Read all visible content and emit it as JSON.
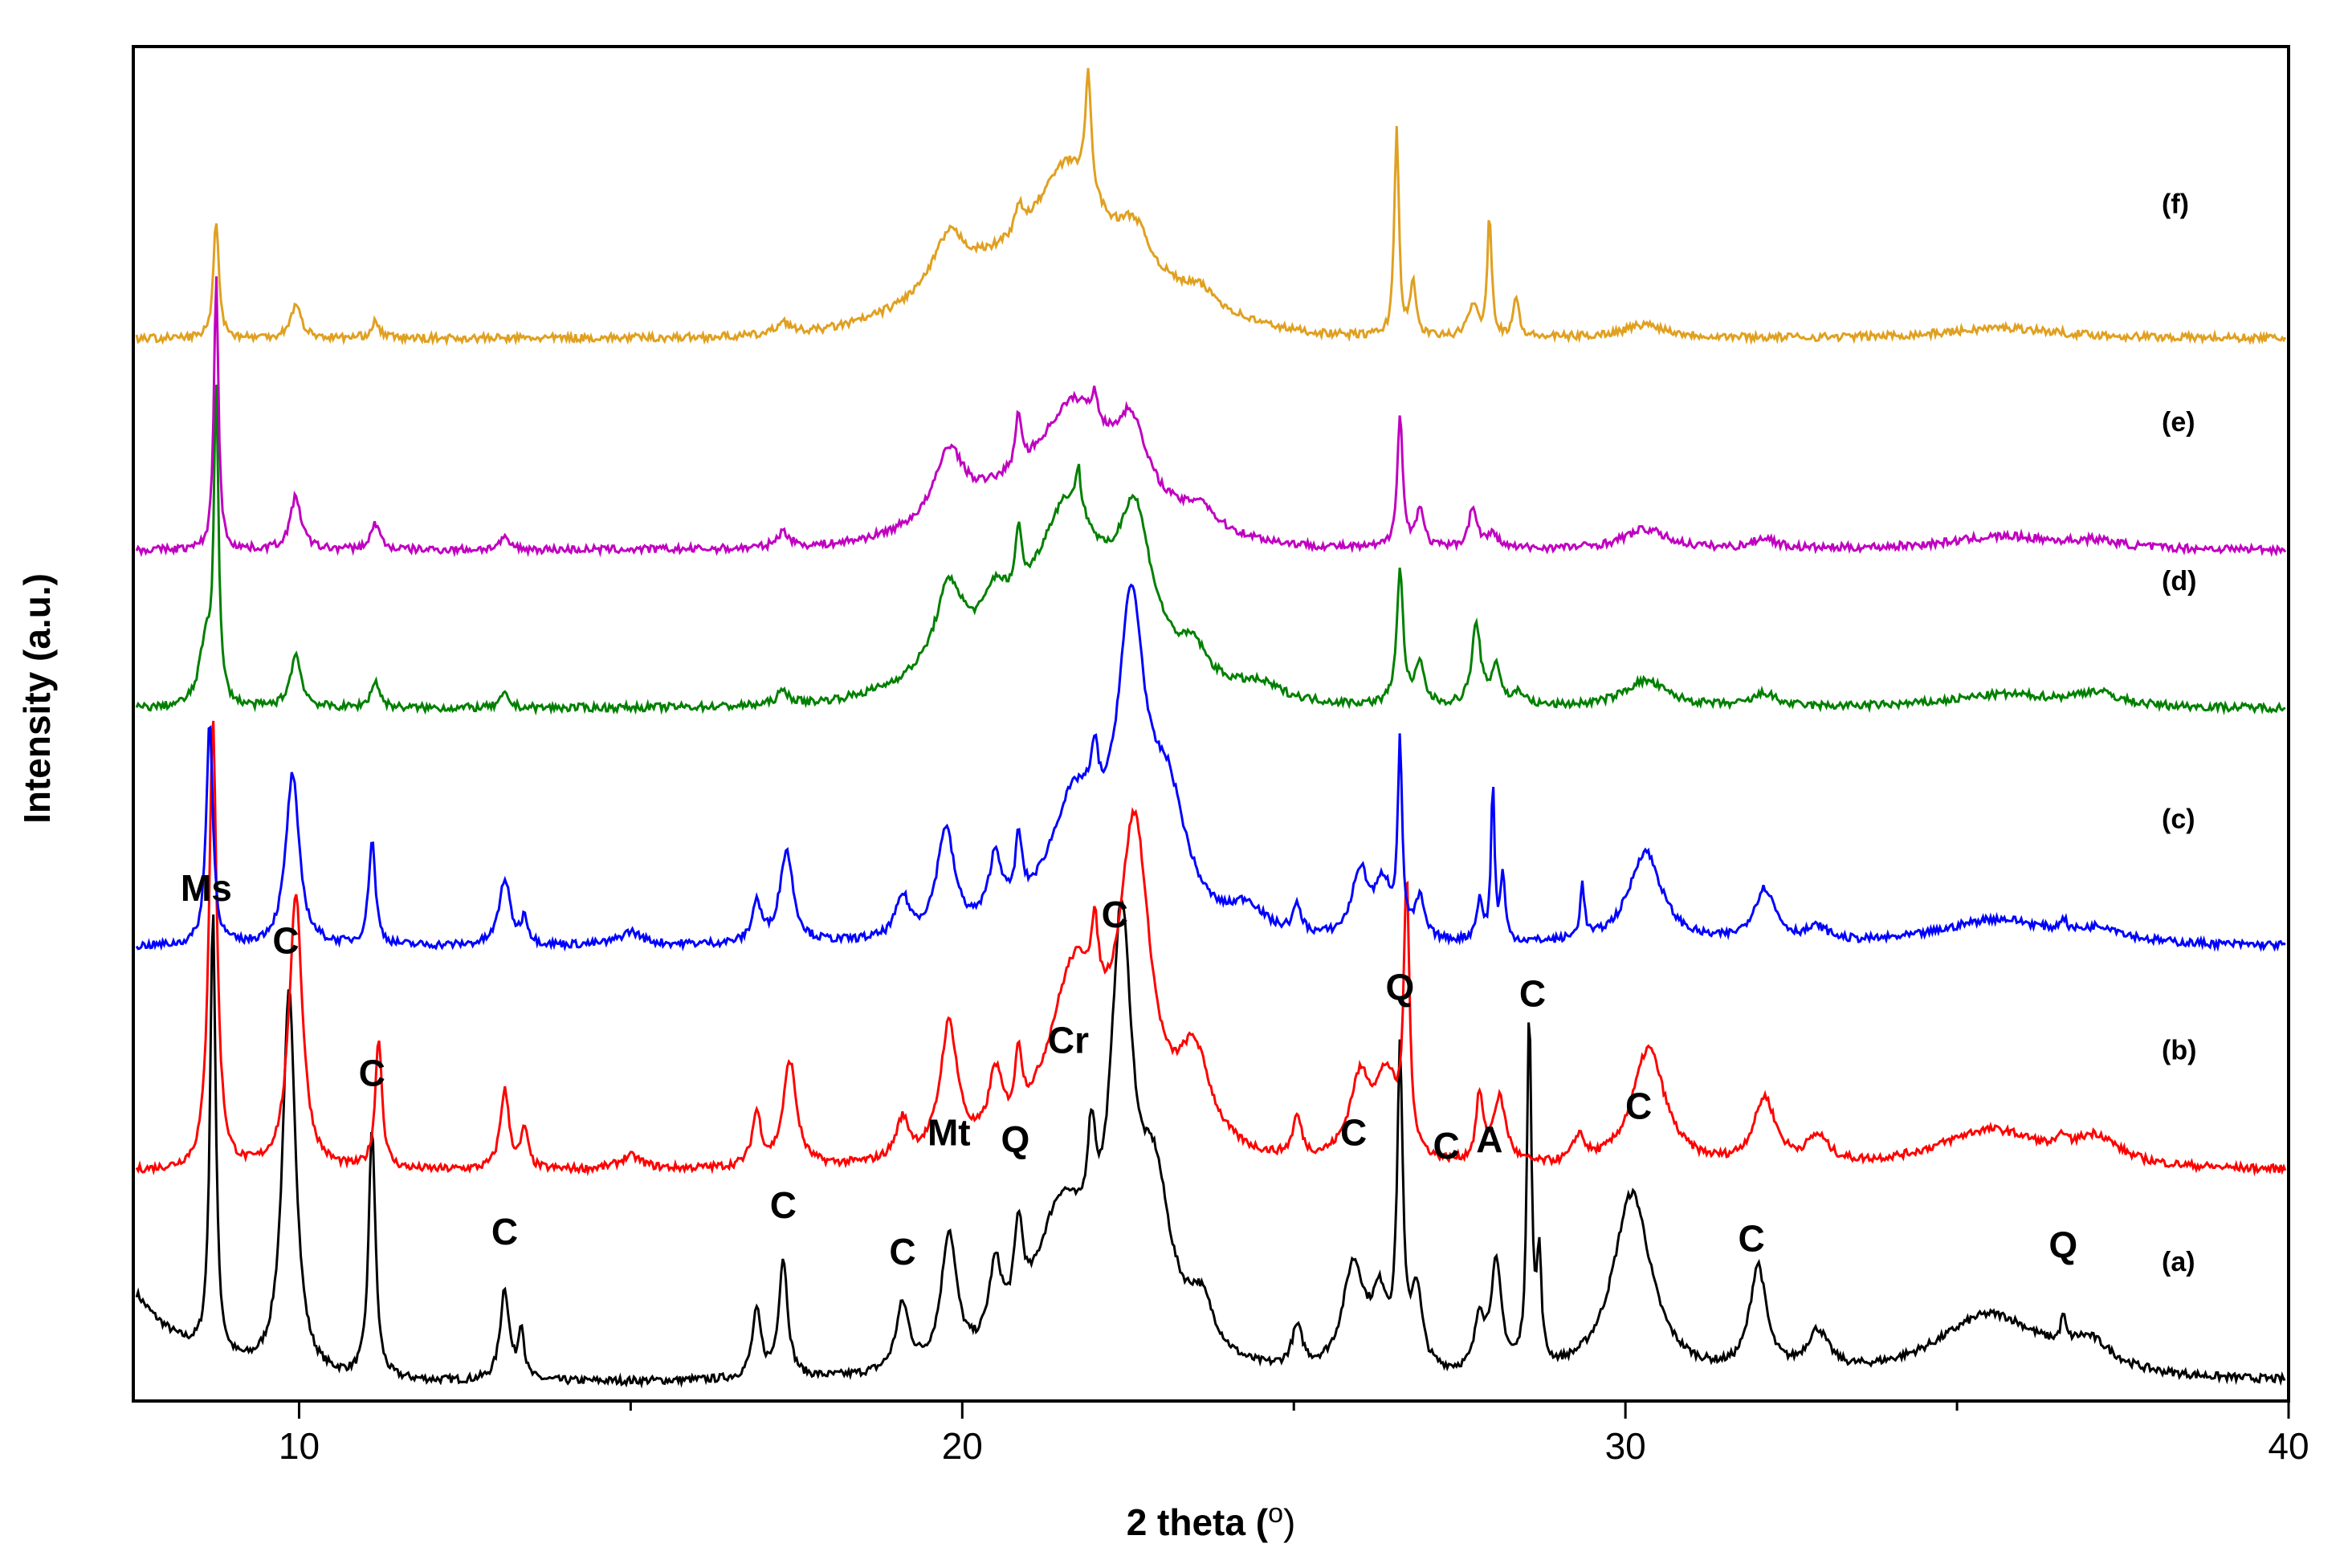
{
  "chart_data": {
    "type": "line",
    "title": "",
    "xlabel": "2 theta (",
    "xlabel_degree": "o",
    "xlabel_close": ")",
    "ylabel": "Intensity (a.u.)",
    "xlim": [
      7.5,
      40
    ],
    "ylim": [
      0,
      1
    ],
    "x_ticks": [
      10,
      20,
      30,
      40
    ],
    "x_tick_labels": [
      "10",
      "20",
      "30",
      "40"
    ],
    "grid": false,
    "legend": "right-inline",
    "series": [
      {
        "name": "(a)",
        "color": "#000000",
        "offset": 0.0,
        "baseline": 0.0,
        "peaks": [
          [
            8.7,
            0.34,
            0.05
          ],
          [
            9.85,
            0.29,
            0.12
          ],
          [
            11.1,
            0.19,
            0.06
          ],
          [
            13.1,
            0.07,
            0.08
          ],
          [
            13.35,
            0.04,
            0.05
          ],
          [
            16.9,
            0.05,
            0.08
          ],
          [
            17.3,
            0.09,
            0.08
          ],
          [
            19.1,
            0.05,
            0.12
          ],
          [
            19.8,
            0.1,
            0.14
          ],
          [
            20.5,
            0.06,
            0.12
          ],
          [
            20.85,
            0.07,
            0.08
          ],
          [
            21.5,
            0.12,
            0.5
          ],
          [
            21.95,
            0.08,
            0.08
          ],
          [
            22.4,
            0.3,
            0.2
          ],
          [
            22.9,
            0.12,
            0.3
          ],
          [
            23.6,
            0.04,
            0.25
          ],
          [
            25.05,
            0.03,
            0.1
          ],
          [
            25.9,
            0.08,
            0.2
          ],
          [
            26.3,
            0.05,
            0.15
          ],
          [
            26.6,
            0.23,
            0.05
          ],
          [
            26.85,
            0.06,
            0.1
          ],
          [
            27.8,
            0.04,
            0.08
          ],
          [
            28.05,
            0.08,
            0.1
          ],
          [
            28.55,
            0.27,
            0.04
          ],
          [
            28.7,
            0.08,
            0.04
          ],
          [
            30.1,
            0.14,
            0.35
          ],
          [
            32.0,
            0.08,
            0.15
          ],
          [
            32.9,
            0.03,
            0.2
          ],
          [
            35.5,
            0.05,
            1.0
          ],
          [
            36.6,
            0.02,
            0.04
          ],
          [
            37.0,
            0.02,
            0.4
          ]
        ],
        "start_hump": 0.07
      },
      {
        "name": "(b)",
        "color": "#ff0000",
        "offset": 0.16,
        "peaks": [
          [
            8.7,
            0.34,
            0.07
          ],
          [
            9.95,
            0.21,
            0.12
          ],
          [
            11.2,
            0.1,
            0.06
          ],
          [
            13.1,
            0.06,
            0.08
          ],
          [
            13.4,
            0.03,
            0.06
          ],
          [
            15.0,
            0.01,
            0.2
          ],
          [
            16.9,
            0.04,
            0.08
          ],
          [
            17.4,
            0.08,
            0.12
          ],
          [
            19.1,
            0.03,
            0.12
          ],
          [
            19.8,
            0.1,
            0.16
          ],
          [
            20.5,
            0.05,
            0.12
          ],
          [
            20.85,
            0.05,
            0.06
          ],
          [
            21.7,
            0.14,
            0.5
          ],
          [
            22.0,
            0.05,
            0.06
          ],
          [
            22.6,
            0.23,
            0.28
          ],
          [
            23.5,
            0.07,
            0.3
          ],
          [
            25.05,
            0.03,
            0.08
          ],
          [
            26.0,
            0.06,
            0.2
          ],
          [
            26.4,
            0.06,
            0.2
          ],
          [
            26.7,
            0.2,
            0.05
          ],
          [
            27.8,
            0.05,
            0.06
          ],
          [
            28.1,
            0.05,
            0.12
          ],
          [
            29.3,
            0.02,
            0.1
          ],
          [
            30.35,
            0.09,
            0.3
          ],
          [
            32.1,
            0.05,
            0.2
          ],
          [
            32.9,
            0.02,
            0.2
          ],
          [
            35.5,
            0.03,
            1.0
          ],
          [
            36.6,
            0.01,
            0.05
          ],
          [
            37.1,
            0.02,
            0.4
          ]
        ]
      },
      {
        "name": "(c)",
        "color": "#0000ff",
        "offset": 0.33,
        "peaks": [
          [
            8.65,
            0.17,
            0.06
          ],
          [
            9.9,
            0.13,
            0.12
          ],
          [
            11.1,
            0.08,
            0.06
          ],
          [
            13.1,
            0.05,
            0.1
          ],
          [
            13.4,
            0.02,
            0.06
          ],
          [
            15.0,
            0.01,
            0.2
          ],
          [
            16.9,
            0.03,
            0.08
          ],
          [
            17.35,
            0.07,
            0.12
          ],
          [
            19.1,
            0.03,
            0.12
          ],
          [
            19.75,
            0.08,
            0.16
          ],
          [
            20.5,
            0.05,
            0.12
          ],
          [
            20.85,
            0.05,
            0.06
          ],
          [
            21.7,
            0.1,
            0.5
          ],
          [
            22.0,
            0.04,
            0.06
          ],
          [
            22.55,
            0.22,
            0.25
          ],
          [
            23.1,
            0.09,
            0.35
          ],
          [
            24.3,
            0.02,
            0.3
          ],
          [
            25.05,
            0.02,
            0.08
          ],
          [
            26.0,
            0.05,
            0.15
          ],
          [
            26.35,
            0.04,
            0.15
          ],
          [
            26.6,
            0.14,
            0.04
          ],
          [
            26.9,
            0.03,
            0.08
          ],
          [
            27.8,
            0.03,
            0.06
          ],
          [
            28.0,
            0.12,
            0.03
          ],
          [
            28.15,
            0.05,
            0.04
          ],
          [
            29.35,
            0.04,
            0.04
          ],
          [
            30.3,
            0.07,
            0.3
          ],
          [
            32.1,
            0.04,
            0.2
          ],
          [
            32.9,
            0.01,
            0.2
          ],
          [
            35.6,
            0.02,
            1.0
          ],
          [
            36.6,
            0.01,
            0.05
          ],
          [
            37.2,
            0.01,
            0.4
          ]
        ]
      },
      {
        "name": "(d)",
        "color": "#008000",
        "offset": 0.51,
        "peaks": [
          [
            8.75,
            0.23,
            0.04
          ],
          [
            8.6,
            0.05,
            0.12
          ],
          [
            9.95,
            0.04,
            0.1
          ],
          [
            11.15,
            0.02,
            0.08
          ],
          [
            13.1,
            0.01,
            0.08
          ],
          [
            17.3,
            0.01,
            0.12
          ],
          [
            19.8,
            0.06,
            0.25
          ],
          [
            20.5,
            0.03,
            0.2
          ],
          [
            20.85,
            0.05,
            0.05
          ],
          [
            21.6,
            0.1,
            0.55
          ],
          [
            21.75,
            0.03,
            0.04
          ],
          [
            22.6,
            0.1,
            0.3
          ],
          [
            23.5,
            0.02,
            0.2
          ],
          [
            24.5,
            0.01,
            0.4
          ],
          [
            26.6,
            0.1,
            0.06
          ],
          [
            26.9,
            0.03,
            0.08
          ],
          [
            27.75,
            0.06,
            0.08
          ],
          [
            28.05,
            0.03,
            0.08
          ],
          [
            28.4,
            0.01,
            0.1
          ],
          [
            30.3,
            0.02,
            0.4
          ],
          [
            32.1,
            0.01,
            0.2
          ],
          [
            35.7,
            0.01,
            1.0
          ],
          [
            37.1,
            0.01,
            0.4
          ]
        ],
        "broad": [
          [
            21.4,
            0.05,
            2.0
          ]
        ]
      },
      {
        "name": "(e)",
        "color": "#c000c0",
        "offset": 0.63,
        "peaks": [
          [
            8.75,
            0.21,
            0.04
          ],
          [
            9.95,
            0.04,
            0.1
          ],
          [
            11.15,
            0.02,
            0.08
          ],
          [
            13.1,
            0.008,
            0.1
          ],
          [
            17.3,
            0.012,
            0.12
          ],
          [
            19.8,
            0.05,
            0.25
          ],
          [
            20.85,
            0.04,
            0.05
          ],
          [
            21.7,
            0.06,
            0.55
          ],
          [
            22.0,
            0.02,
            0.05
          ],
          [
            22.55,
            0.05,
            0.25
          ],
          [
            23.6,
            0.015,
            0.2
          ],
          [
            26.6,
            0.1,
            0.05
          ],
          [
            26.9,
            0.03,
            0.07
          ],
          [
            27.7,
            0.03,
            0.08
          ],
          [
            28.0,
            0.01,
            0.1
          ],
          [
            30.3,
            0.015,
            0.4
          ],
          [
            32.1,
            0.008,
            0.2
          ],
          [
            35.7,
            0.01,
            1.0
          ],
          [
            37.1,
            0.005,
            0.4
          ]
        ],
        "broad": [
          [
            21.5,
            0.05,
            2.0
          ]
        ]
      },
      {
        "name": "(f)",
        "color": "#e0a020",
        "offset": 0.79,
        "peaks": [
          [
            8.75,
            0.09,
            0.05
          ],
          [
            9.95,
            0.025,
            0.1
          ],
          [
            11.15,
            0.012,
            0.08
          ],
          [
            17.3,
            0.01,
            0.12
          ],
          [
            19.8,
            0.04,
            0.3
          ],
          [
            20.85,
            0.02,
            0.06
          ],
          [
            21.9,
            0.09,
            0.05
          ],
          [
            21.6,
            0.07,
            0.55
          ],
          [
            22.6,
            0.03,
            0.25
          ],
          [
            23.6,
            0.012,
            0.3
          ],
          [
            26.55,
            0.16,
            0.04
          ],
          [
            26.8,
            0.04,
            0.05
          ],
          [
            27.7,
            0.025,
            0.08
          ],
          [
            27.95,
            0.09,
            0.04
          ],
          [
            28.35,
            0.03,
            0.05
          ],
          [
            30.3,
            0.01,
            0.4
          ],
          [
            35.7,
            0.008,
            1.0
          ]
        ],
        "broad": [
          [
            21.4,
            0.06,
            2.2
          ]
        ]
      }
    ],
    "phase_labels": [
      {
        "text": "Ms",
        "x": 8.6,
        "y": 0.365
      },
      {
        "text": "C",
        "x": 9.8,
        "y": 0.325
      },
      {
        "text": "C",
        "x": 11.1,
        "y": 0.225
      },
      {
        "text": "C",
        "x": 13.1,
        "y": 0.105
      },
      {
        "text": "C",
        "x": 17.3,
        "y": 0.125
      },
      {
        "text": "C",
        "x": 19.1,
        "y": 0.09
      },
      {
        "text": "Mt",
        "x": 19.8,
        "y": 0.18
      },
      {
        "text": "Q",
        "x": 20.8,
        "y": 0.175
      },
      {
        "text": "Cr",
        "x": 21.6,
        "y": 0.25
      },
      {
        "text": "C",
        "x": 22.3,
        "y": 0.345
      },
      {
        "text": "C",
        "x": 25.9,
        "y": 0.18
      },
      {
        "text": "Q",
        "x": 26.6,
        "y": 0.29
      },
      {
        "text": "C",
        "x": 27.3,
        "y": 0.17
      },
      {
        "text": "A",
        "x": 27.95,
        "y": 0.175
      },
      {
        "text": "C",
        "x": 28.6,
        "y": 0.285
      },
      {
        "text": "C",
        "x": 30.2,
        "y": 0.2
      },
      {
        "text": "C",
        "x": 31.9,
        "y": 0.1
      },
      {
        "text": "Q",
        "x": 36.6,
        "y": 0.095
      }
    ],
    "sample_labels": [
      {
        "text": "(a)",
        "y": 0.085
      },
      {
        "text": "(b)",
        "y": 0.245
      },
      {
        "text": "(c)",
        "y": 0.42
      },
      {
        "text": "(d)",
        "y": 0.6
      },
      {
        "text": "(e)",
        "y": 0.72
      },
      {
        "text": "(f)",
        "y": 0.885
      }
    ]
  }
}
